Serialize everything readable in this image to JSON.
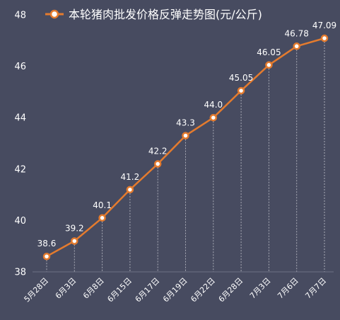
{
  "chart_data": {
    "type": "line",
    "title": "本轮猪肉批发价格反弹走势图(元/公斤)",
    "xlabel": "",
    "ylabel": "",
    "categories": [
      "5月28日",
      "6月3日",
      "6月8日",
      "6月15日",
      "6月17日",
      "6月19日",
      "6月22日",
      "6月28日",
      "7月3日",
      "7月6日",
      "7月7日"
    ],
    "series": [
      {
        "name": "本轮猪肉批发价格反弹走势图(元/公斤)",
        "values": [
          38.6,
          39.2,
          40.1,
          41.2,
          42.2,
          43.3,
          44.0,
          45.05,
          46.05,
          46.78,
          47.09
        ],
        "labels": [
          "38.6",
          "39.2",
          "40.1",
          "41.2",
          "42.2",
          "43.3",
          "44.0",
          "45.05",
          "46.05",
          "46.78",
          "47.09"
        ]
      }
    ],
    "ylim": [
      38,
      48
    ],
    "yticks": [
      38,
      40,
      42,
      44,
      46,
      48
    ],
    "grid": "vertical dashed drop lines",
    "legend": "top-center",
    "colors": {
      "background": "#474b60",
      "line": "#e47b2e",
      "marker_fill": "#ffffff",
      "text": "#ffffff",
      "dropline": "#a9abb6"
    }
  }
}
